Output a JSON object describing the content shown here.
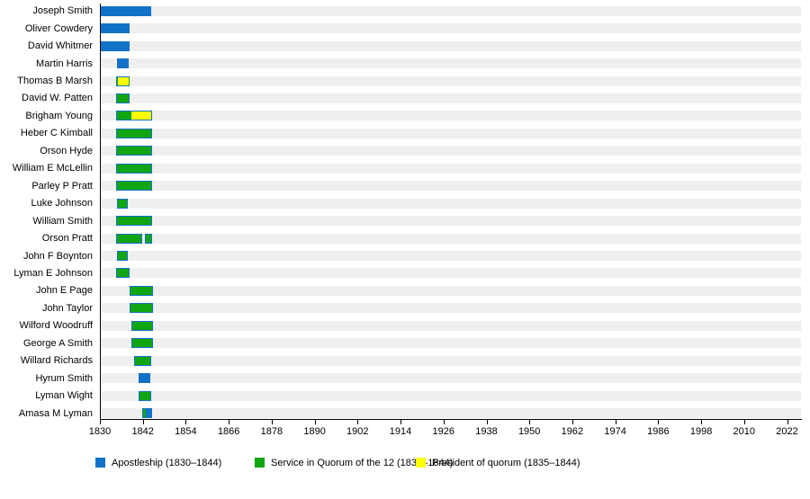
{
  "chart_data": {
    "type": "bar",
    "subtype": "timeline-gantt",
    "title": "",
    "x_axis": {
      "start": 1830,
      "end": 2023.5,
      "tick_years": [
        1830,
        1842,
        1854,
        1866,
        1878,
        1890,
        1902,
        1914,
        1926,
        1938,
        1950,
        1962,
        1974,
        1986,
        1998,
        2010,
        2022
      ],
      "grid": false
    },
    "colors": {
      "apostleship": "#1272c8",
      "quorum": "#12a512",
      "president": "#ffff00",
      "row_track": "#efefef",
      "axis": "#000000"
    },
    "legend": [
      {
        "key": "apostleship",
        "label": "Apostleship (1830–1844)",
        "color": "#1272c8"
      },
      {
        "key": "quorum",
        "label": "Service in Quorum of the 12 (1835–1844)",
        "color": "#12a512"
      },
      {
        "key": "president",
        "label": "President of quorum (1835–1844)",
        "color": "#ffff00"
      }
    ],
    "rows": [
      {
        "name": "Joseph Smith",
        "segments": [
          {
            "layer": "apostleship",
            "start": 1830.15,
            "end": 1844.4
          }
        ]
      },
      {
        "name": "Oliver Cowdery",
        "segments": [
          {
            "layer": "apostleship",
            "start": 1830.15,
            "end": 1838.4
          }
        ]
      },
      {
        "name": "David Whitmer",
        "segments": [
          {
            "layer": "apostleship",
            "start": 1830.15,
            "end": 1838.4
          }
        ]
      },
      {
        "name": "Martin Harris",
        "segments": [
          {
            "layer": "apostleship",
            "start": 1834.8,
            "end": 1838.1
          }
        ]
      },
      {
        "name": "Thomas B Marsh",
        "segments": [
          {
            "layer": "apostleship",
            "start": 1834.6,
            "end": 1838.4
          },
          {
            "layer": "quorum",
            "start": 1834.8,
            "end": 1838.2
          },
          {
            "layer": "president",
            "start": 1834.95,
            "end": 1838.05
          }
        ]
      },
      {
        "name": "David W. Patten",
        "segments": [
          {
            "layer": "apostleship",
            "start": 1834.6,
            "end": 1838.4
          },
          {
            "layer": "quorum",
            "start": 1834.85,
            "end": 1838.15
          }
        ]
      },
      {
        "name": "Brigham Young",
        "segments": [
          {
            "layer": "apostleship",
            "start": 1834.6,
            "end": 1844.6
          },
          {
            "layer": "quorum",
            "start": 1834.85,
            "end": 1838.9
          },
          {
            "layer": "president",
            "start": 1838.9,
            "end": 1844.35
          }
        ]
      },
      {
        "name": "Heber C Kimball",
        "segments": [
          {
            "layer": "apostleship",
            "start": 1834.6,
            "end": 1844.6
          },
          {
            "layer": "quorum",
            "start": 1834.85,
            "end": 1844.35
          }
        ]
      },
      {
        "name": "Orson Hyde",
        "segments": [
          {
            "layer": "apostleship",
            "start": 1834.6,
            "end": 1844.6
          },
          {
            "layer": "quorum",
            "start": 1834.85,
            "end": 1844.35
          }
        ]
      },
      {
        "name": "William E McLellin",
        "segments": [
          {
            "layer": "apostleship",
            "start": 1834.6,
            "end": 1844.6
          },
          {
            "layer": "quorum",
            "start": 1834.85,
            "end": 1844.35
          }
        ]
      },
      {
        "name": "Parley P Pratt",
        "segments": [
          {
            "layer": "apostleship",
            "start": 1834.6,
            "end": 1844.6
          },
          {
            "layer": "quorum",
            "start": 1834.85,
            "end": 1844.35
          }
        ]
      },
      {
        "name": "Luke Johnson",
        "segments": [
          {
            "layer": "apostleship",
            "start": 1834.7,
            "end": 1837.9
          },
          {
            "layer": "quorum",
            "start": 1834.95,
            "end": 1837.65
          }
        ]
      },
      {
        "name": "William Smith",
        "segments": [
          {
            "layer": "apostleship",
            "start": 1834.6,
            "end": 1844.6
          },
          {
            "layer": "quorum",
            "start": 1834.85,
            "end": 1844.35
          }
        ]
      },
      {
        "name": "Orson Pratt",
        "segments": [
          {
            "layer": "apostleship",
            "start": 1834.6,
            "end": 1841.9
          },
          {
            "layer": "quorum",
            "start": 1834.85,
            "end": 1841.65
          },
          {
            "layer": "apostleship",
            "start": 1842.6,
            "end": 1844.6
          },
          {
            "layer": "quorum",
            "start": 1842.85,
            "end": 1844.35
          }
        ]
      },
      {
        "name": "John F Boynton",
        "segments": [
          {
            "layer": "apostleship",
            "start": 1834.7,
            "end": 1837.9
          },
          {
            "layer": "quorum",
            "start": 1834.95,
            "end": 1837.65
          }
        ]
      },
      {
        "name": "Lyman E Johnson",
        "segments": [
          {
            "layer": "apostleship",
            "start": 1834.6,
            "end": 1838.2
          },
          {
            "layer": "quorum",
            "start": 1834.85,
            "end": 1837.95
          }
        ]
      },
      {
        "name": "John E Page",
        "segments": [
          {
            "layer": "apostleship",
            "start": 1838.4,
            "end": 1844.8
          },
          {
            "layer": "quorum",
            "start": 1838.65,
            "end": 1844.55
          }
        ]
      },
      {
        "name": "John Taylor",
        "segments": [
          {
            "layer": "apostleship",
            "start": 1838.4,
            "end": 1844.8
          },
          {
            "layer": "quorum",
            "start": 1838.65,
            "end": 1844.55
          }
        ]
      },
      {
        "name": "Wilford Woodruff",
        "segments": [
          {
            "layer": "apostleship",
            "start": 1838.8,
            "end": 1844.8
          },
          {
            "layer": "quorum",
            "start": 1839.05,
            "end": 1844.55
          }
        ]
      },
      {
        "name": "George A Smith",
        "segments": [
          {
            "layer": "apostleship",
            "start": 1838.8,
            "end": 1844.8
          },
          {
            "layer": "quorum",
            "start": 1839.05,
            "end": 1844.55
          }
        ]
      },
      {
        "name": "Willard Richards",
        "segments": [
          {
            "layer": "apostleship",
            "start": 1839.5,
            "end": 1844.4
          },
          {
            "layer": "quorum",
            "start": 1839.75,
            "end": 1844.15
          }
        ]
      },
      {
        "name": "Hyrum Smith",
        "segments": [
          {
            "layer": "apostleship",
            "start": 1840.7,
            "end": 1844.1
          }
        ]
      },
      {
        "name": "Lyman Wight",
        "segments": [
          {
            "layer": "apostleship",
            "start": 1840.7,
            "end": 1844.4
          },
          {
            "layer": "quorum",
            "start": 1840.95,
            "end": 1844.15
          }
        ]
      },
      {
        "name": "Amasa M Lyman",
        "segments": [
          {
            "layer": "apostleship",
            "start": 1841.9,
            "end": 1844.7
          },
          {
            "layer": "quorum",
            "start": 1842.15,
            "end": 1842.9
          }
        ]
      }
    ]
  }
}
